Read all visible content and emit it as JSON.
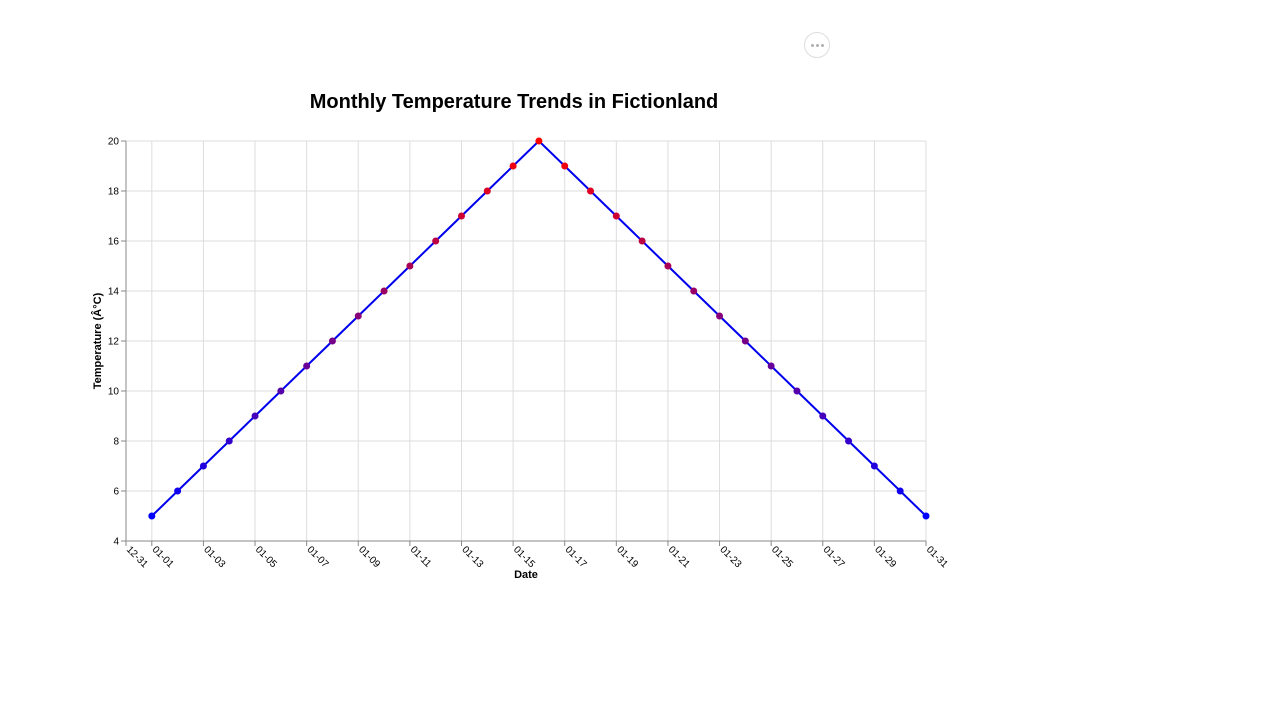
{
  "menu": {
    "icon": "more-horizontal-icon"
  },
  "chart_data": {
    "type": "line",
    "title": "Monthly Temperature Trends in Fictionland",
    "xlabel": "Date",
    "ylabel": "Temperature (Â°C)",
    "x_axis_type": "date",
    "xlim": [
      "2023-12-31",
      "2024-01-31"
    ],
    "ylim": [
      4,
      20
    ],
    "y_ticks": [
      4,
      6,
      8,
      10,
      12,
      14,
      16,
      18,
      20
    ],
    "x_ticks": [
      "12-31",
      "01-01",
      "01-03",
      "01-05",
      "01-07",
      "01-09",
      "01-11",
      "01-13",
      "01-15",
      "01-17",
      "01-19",
      "01-21",
      "01-23",
      "01-25",
      "01-27",
      "01-29",
      "01-31"
    ],
    "grid": true,
    "line_color": "#0000ee",
    "point_color_low": "#0000ff",
    "point_color_high": "#ff0000",
    "series": [
      {
        "x": [
          "2024-01-01",
          "2024-01-02",
          "2024-01-03",
          "2024-01-04",
          "2024-01-05",
          "2024-01-06",
          "2024-01-07",
          "2024-01-08",
          "2024-01-09",
          "2024-01-10",
          "2024-01-11",
          "2024-01-12",
          "2024-01-13",
          "2024-01-14",
          "2024-01-15",
          "2024-01-16",
          "2024-01-17",
          "2024-01-18",
          "2024-01-19",
          "2024-01-20",
          "2024-01-21",
          "2024-01-22",
          "2024-01-23",
          "2024-01-24",
          "2024-01-25",
          "2024-01-26",
          "2024-01-27",
          "2024-01-28",
          "2024-01-29",
          "2024-01-30",
          "2024-01-31"
        ],
        "values": [
          5,
          6,
          7,
          8,
          9,
          10,
          11,
          12,
          13,
          14,
          15,
          16,
          17,
          18,
          19,
          20,
          19,
          18,
          17,
          16,
          15,
          14,
          13,
          12,
          11,
          10,
          9,
          8,
          7,
          6,
          5
        ]
      }
    ]
  }
}
